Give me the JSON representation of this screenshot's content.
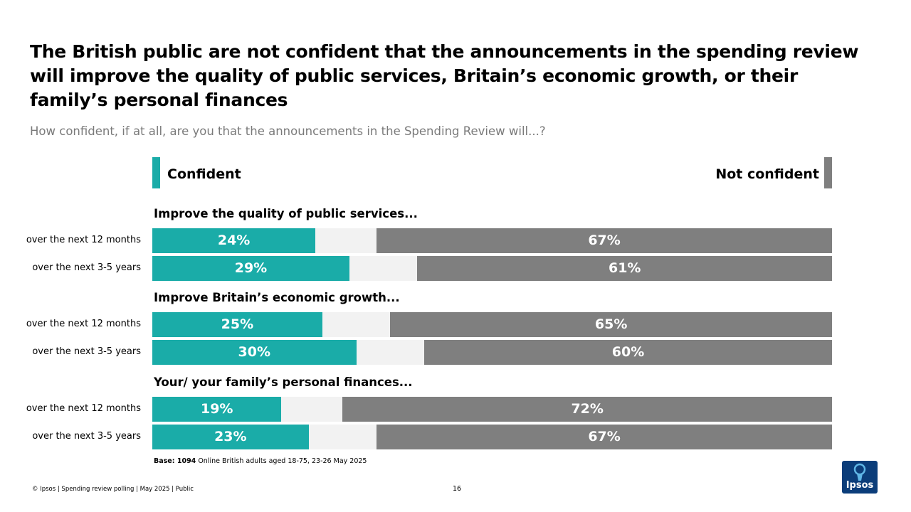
{
  "header": {
    "title": "The British public are not confident that the announcements in the spending review will improve the quality of public services, Britain’s economic growth, or their family’s personal finances",
    "subtitle": "How confident, if at all, are you that the announcements in the Spending Review will...?"
  },
  "colors": {
    "confident": "#1aaca8",
    "not_confident": "#7f7f7f",
    "neutral": "#f2f2f2",
    "logo": "#0b3d7a"
  },
  "chart_data": {
    "type": "bar",
    "orientation": "horizontal-stacked",
    "xlim": [
      0,
      100
    ],
    "legend": {
      "left": "Confident",
      "right": "Not confident",
      "placement": "top"
    },
    "groups": [
      {
        "label": "Improve the quality of public services...",
        "rows": [
          {
            "label": "over the next 12 months",
            "confident": 24,
            "not_confident": 67
          },
          {
            "label": "over the next 3-5 years",
            "confident": 29,
            "not_confident": 61
          }
        ]
      },
      {
        "label": "Improve Britain’s economic growth...",
        "rows": [
          {
            "label": "over the next 12 months",
            "confident": 25,
            "not_confident": 65
          },
          {
            "label": "over the next 3-5 years",
            "confident": 30,
            "not_confident": 60
          }
        ]
      },
      {
        "label": "Your/ your family’s personal finances...",
        "rows": [
          {
            "label": "over the next 12 months",
            "confident": 19,
            "not_confident": 72
          },
          {
            "label": "over the next 3-5 years",
            "confident": 23,
            "not_confident": 67
          }
        ]
      }
    ]
  },
  "base_note": {
    "label": "Base: 1094",
    "text": " Online British adults aged 18-75, 23-26 May 2025"
  },
  "footer": {
    "text": "© Ipsos | Spending review polling | May 2025 | Public",
    "page_number": "16",
    "logo_text": "Ipsos"
  }
}
